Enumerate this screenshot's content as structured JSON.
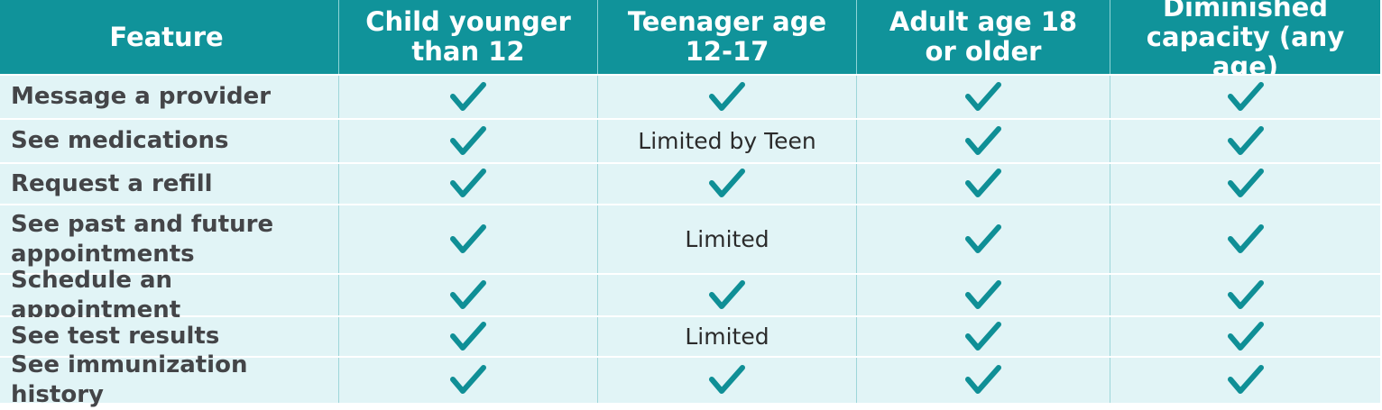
{
  "table": {
    "headers": [
      "Feature",
      "Child younger\nthan 12",
      "Teenager age\n12-17",
      "Adult age 18\nor older",
      "Diminished\ncapacity (any age)"
    ],
    "rows": [
      {
        "feature": "Message a provider",
        "child": "check-icon",
        "teen": "check-icon",
        "adult": "check-icon",
        "diminished": "check-icon"
      },
      {
        "feature": "See medications",
        "child": "check-icon",
        "teen": "Limited by Teen",
        "adult": "check-icon",
        "diminished": "check-icon"
      },
      {
        "feature": "Request a refill",
        "child": "check-icon",
        "teen": "check-icon",
        "adult": "check-icon",
        "diminished": "check-icon"
      },
      {
        "feature": "See past and future\nappointments",
        "child": "check-icon",
        "teen": "Limited",
        "adult": "check-icon",
        "diminished": "check-icon"
      },
      {
        "feature": "Schedule an appointment",
        "child": "check-icon",
        "teen": "check-icon",
        "adult": "check-icon",
        "diminished": "check-icon"
      },
      {
        "feature": "See test results",
        "child": "check-icon",
        "teen": "Limited",
        "adult": "check-icon",
        "diminished": "check-icon"
      },
      {
        "feature": "See immunization history",
        "child": "check-icon",
        "teen": "check-icon",
        "adult": "check-icon",
        "diminished": "check-icon"
      }
    ]
  },
  "colors": {
    "header_bg": "#10939a",
    "row_bg": "#e1f4f6",
    "check": "#0f8f96"
  }
}
